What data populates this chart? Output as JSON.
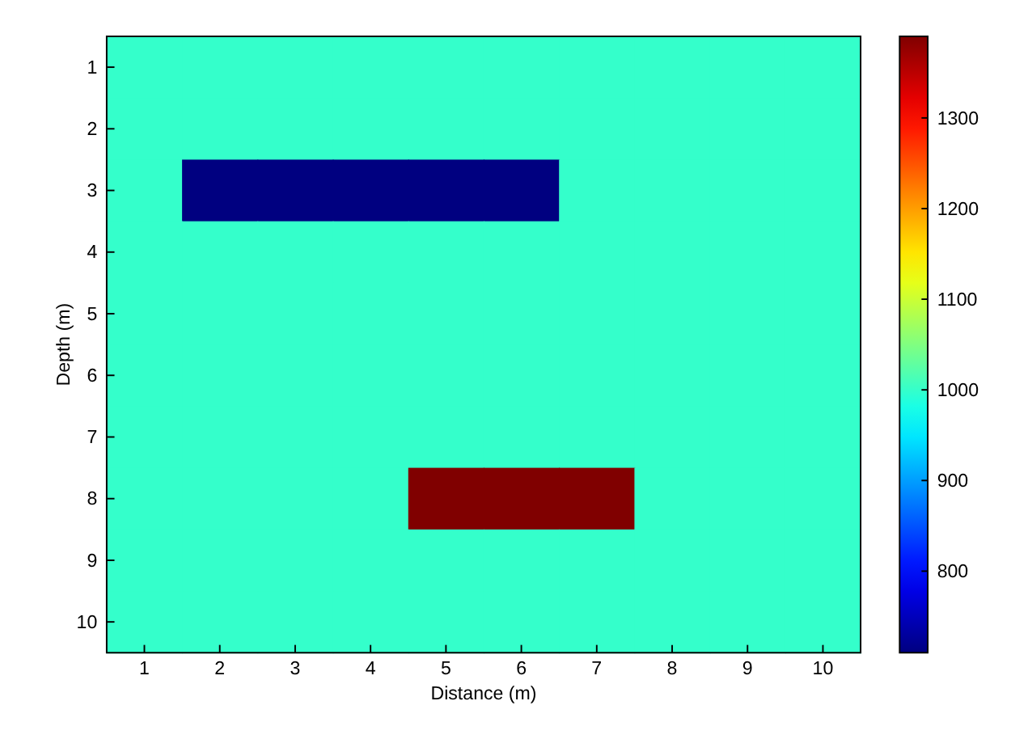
{
  "chart_data": {
    "type": "heatmap",
    "xlabel": "Distance (m)",
    "ylabel": "Depth (m)",
    "categories": [
      "1",
      "2",
      "3",
      "4",
      "5",
      "6",
      "7",
      "8",
      "9",
      "10"
    ],
    "y_categories": [
      "1",
      "2",
      "3",
      "4",
      "5",
      "6",
      "7",
      "8",
      "9",
      "10"
    ],
    "cells": [
      [
        1000,
        1000,
        1000,
        1000,
        1000,
        1000,
        1000,
        1000,
        1000,
        1000
      ],
      [
        1000,
        1000,
        1000,
        1000,
        1000,
        1000,
        1000,
        1000,
        1000,
        1000
      ],
      [
        1000,
        710,
        710,
        710,
        710,
        710,
        1000,
        1000,
        1000,
        1000
      ],
      [
        1000,
        1000,
        1000,
        1000,
        1000,
        1000,
        1000,
        1000,
        1000,
        1000
      ],
      [
        1000,
        1000,
        1000,
        1000,
        1000,
        1000,
        1000,
        1000,
        1000,
        1000
      ],
      [
        1000,
        1000,
        1000,
        1000,
        1000,
        1000,
        1000,
        1000,
        1000,
        1000
      ],
      [
        1000,
        1000,
        1000,
        1000,
        1000,
        1000,
        1000,
        1000,
        1000,
        1000
      ],
      [
        1000,
        1000,
        1000,
        1000,
        1390,
        1390,
        1390,
        1000,
        1000,
        1000
      ],
      [
        1000,
        1000,
        1000,
        1000,
        1000,
        1000,
        1000,
        1000,
        1000,
        1000
      ],
      [
        1000,
        1000,
        1000,
        1000,
        1000,
        1000,
        1000,
        1000,
        1000,
        1000
      ]
    ],
    "clim": [
      710,
      1390
    ],
    "cticks": [
      800,
      900,
      1000,
      1100,
      1200,
      1300
    ]
  }
}
